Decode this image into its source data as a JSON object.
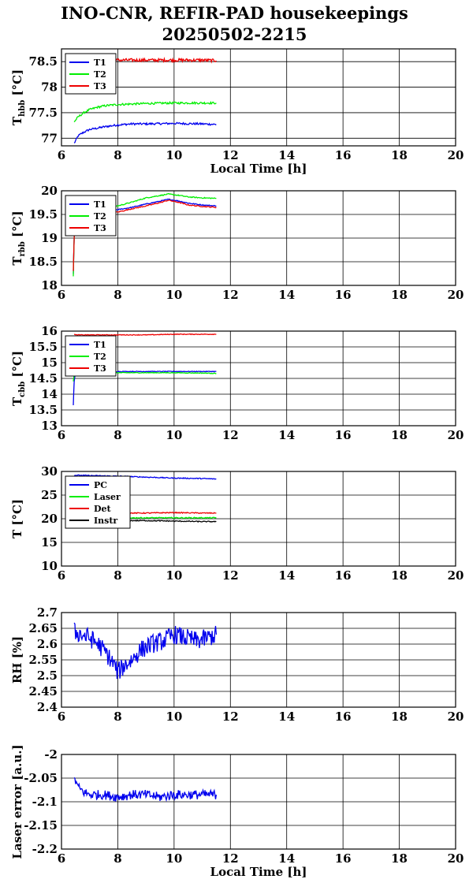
{
  "title": "INO-CNR, REFIR-PAD housekeepings",
  "subtitle": "20250502-2215",
  "colors": {
    "blue": "#0000ee",
    "green": "#00ee00",
    "red": "#ee0000",
    "black": "#000000"
  },
  "chart_data": [
    {
      "type": "line",
      "ylabel": "T",
      "ylabel_sub": "hbb",
      "ylabel_unit": "[°C]",
      "xlabel": "Local Time [h]",
      "xlim": [
        6,
        20
      ],
      "ylim": [
        76.85,
        78.75
      ],
      "xticks": [
        6,
        8,
        10,
        12,
        14,
        16,
        18,
        20
      ],
      "yticks": [
        77,
        77.5,
        78,
        78.5
      ],
      "ytick_labels": [
        "77",
        "77.5",
        "78",
        "78.5"
      ],
      "grid": true,
      "legend_position": "top-left",
      "series": [
        {
          "name": "T1",
          "color": "#0000ee",
          "x": [
            6.45,
            6.6,
            6.8,
            7.0,
            7.3,
            7.6,
            8.0,
            8.5,
            9.0,
            10.0,
            11.0,
            11.5
          ],
          "y": [
            76.9,
            77.05,
            77.12,
            77.17,
            77.2,
            77.23,
            77.26,
            77.28,
            77.28,
            77.29,
            77.28,
            77.27
          ]
        },
        {
          "name": "T2",
          "color": "#00ee00",
          "x": [
            6.45,
            6.6,
            6.8,
            7.0,
            7.3,
            7.6,
            8.0,
            8.5,
            9.0,
            10.0,
            11.0,
            11.5
          ],
          "y": [
            77.32,
            77.42,
            77.5,
            77.56,
            77.61,
            77.64,
            77.66,
            77.67,
            77.68,
            77.69,
            77.69,
            77.69
          ]
        },
        {
          "name": "T3",
          "color": "#ee0000",
          "x": [
            7.6,
            8.0,
            9.0,
            10.0,
            11.0,
            11.5
          ],
          "y": [
            78.52,
            78.53,
            78.53,
            78.53,
            78.53,
            78.52
          ]
        }
      ]
    },
    {
      "type": "line",
      "ylabel": "T",
      "ylabel_sub": "rbb",
      "ylabel_unit": "[°C]",
      "xlabel": "",
      "xlim": [
        6,
        20
      ],
      "ylim": [
        18,
        20
      ],
      "xticks": [
        6,
        8,
        10,
        12,
        14,
        16,
        18,
        20
      ],
      "yticks": [
        18,
        18.5,
        19,
        19.5,
        20
      ],
      "ytick_labels": [
        "18",
        "18.5",
        "19",
        "19.5",
        "20"
      ],
      "grid": true,
      "legend_position": "top-left",
      "series": [
        {
          "name": "T1",
          "color": "#0000ee",
          "x": [
            6.42,
            6.45,
            6.5,
            8.0,
            8.5,
            9.0,
            9.5,
            9.8,
            10.2,
            10.5,
            11.0,
            11.5
          ],
          "y": [
            18.25,
            19.0,
            19.55,
            19.6,
            19.65,
            19.72,
            19.78,
            19.82,
            19.78,
            19.74,
            19.7,
            19.68
          ]
        },
        {
          "name": "T2",
          "color": "#00ee00",
          "x": [
            6.42,
            6.45,
            6.5,
            8.0,
            8.5,
            9.0,
            9.5,
            9.8,
            10.2,
            10.5,
            11.0,
            11.5
          ],
          "y": [
            18.2,
            19.0,
            19.6,
            19.68,
            19.76,
            19.85,
            19.9,
            19.93,
            19.9,
            19.87,
            19.85,
            19.84
          ]
        },
        {
          "name": "T3",
          "color": "#ee0000",
          "x": [
            6.42,
            6.45,
            6.5,
            8.0,
            8.5,
            9.0,
            9.5,
            9.8,
            10.2,
            10.5,
            11.0,
            11.5
          ],
          "y": [
            18.3,
            19.0,
            19.5,
            19.55,
            19.62,
            19.68,
            19.75,
            19.8,
            19.75,
            19.7,
            19.67,
            19.65
          ]
        }
      ]
    },
    {
      "type": "line",
      "ylabel": "T",
      "ylabel_sub": "cbb",
      "ylabel_unit": "[°C]",
      "xlabel": "",
      "xlim": [
        6,
        20
      ],
      "ylim": [
        13,
        16
      ],
      "xticks": [
        6,
        8,
        10,
        12,
        14,
        16,
        18,
        20
      ],
      "yticks": [
        13,
        13.5,
        14,
        14.5,
        15,
        15.5,
        16
      ],
      "ytick_labels": [
        "13",
        "13.5",
        "14",
        "14.5",
        "15",
        "15.5",
        "16"
      ],
      "grid": true,
      "legend_position": "top-left",
      "series": [
        {
          "name": "T1",
          "color": "#0000ee",
          "x": [
            6.42,
            6.45,
            6.5,
            8.0,
            9.0,
            10.0,
            11.0,
            11.5
          ],
          "y": [
            13.65,
            14.4,
            14.72,
            14.72,
            14.72,
            14.72,
            14.72,
            14.72
          ]
        },
        {
          "name": "T2",
          "color": "#00ee00",
          "x": [
            6.42,
            6.45,
            6.5,
            8.0,
            9.0,
            10.0,
            11.0,
            11.5
          ],
          "y": [
            14.4,
            14.6,
            14.68,
            14.68,
            14.68,
            14.68,
            14.67,
            14.66
          ]
        },
        {
          "name": "T3",
          "color": "#ee0000",
          "x": [
            6.45,
            6.5,
            8.0,
            9.0,
            10.0,
            11.0,
            11.5
          ],
          "y": [
            15.9,
            15.88,
            15.88,
            15.88,
            15.9,
            15.9,
            15.9
          ]
        }
      ]
    },
    {
      "type": "line",
      "ylabel": "T [°C]",
      "ylabel_sub": "",
      "ylabel_unit": "",
      "xlabel": "",
      "xlim": [
        6,
        20
      ],
      "ylim": [
        10,
        30
      ],
      "xticks": [
        6,
        8,
        10,
        12,
        14,
        16,
        18,
        20
      ],
      "yticks": [
        10,
        15,
        20,
        25,
        30
      ],
      "ytick_labels": [
        "10",
        "15",
        "20",
        "25",
        "30"
      ],
      "grid": true,
      "legend_position": "top-left",
      "series": [
        {
          "name": "PC",
          "color": "#0000ee",
          "x": [
            6.45,
            8.0,
            9.0,
            10.0,
            11.0,
            11.5
          ],
          "y": [
            29.2,
            29.0,
            28.8,
            28.6,
            28.5,
            28.4
          ]
        },
        {
          "name": "Laser",
          "color": "#00ee00",
          "x": [
            6.45,
            8.0,
            9.0,
            10.0,
            11.0,
            11.5
          ],
          "y": [
            20.1,
            20.2,
            20.2,
            20.2,
            20.2,
            20.2
          ]
        },
        {
          "name": "Det",
          "color": "#ee0000",
          "x": [
            6.45,
            8.0,
            9.0,
            10.0,
            11.0,
            11.5
          ],
          "y": [
            21.2,
            21.2,
            21.2,
            21.3,
            21.2,
            21.2
          ]
        },
        {
          "name": "Instr",
          "color": "#000000",
          "x": [
            6.45,
            8.0,
            9.0,
            10.0,
            11.0,
            11.5
          ],
          "y": [
            19.5,
            19.6,
            19.6,
            19.5,
            19.4,
            19.4
          ]
        }
      ]
    },
    {
      "type": "line",
      "ylabel": "RH [%]",
      "ylabel_sub": "",
      "ylabel_unit": "",
      "xlabel": "",
      "xlim": [
        6,
        20
      ],
      "ylim": [
        2.4,
        2.7
      ],
      "xticks": [
        6,
        8,
        10,
        12,
        14,
        16,
        18,
        20
      ],
      "yticks": [
        2.4,
        2.45,
        2.5,
        2.55,
        2.6,
        2.65,
        2.7
      ],
      "ytick_labels": [
        "2.4",
        "2.45",
        "2.5",
        "2.55",
        "2.6",
        "2.65",
        "2.7"
      ],
      "grid": true,
      "legend_position": "",
      "series": [
        {
          "name": "",
          "color": "#0000ee",
          "x": [
            6.45,
            6.7,
            7.0,
            7.3,
            7.6,
            7.9,
            8.0,
            8.2,
            8.5,
            8.8,
            9.2,
            9.6,
            10.0,
            10.4,
            10.8,
            11.2,
            11.5
          ],
          "y": [
            2.64,
            2.63,
            2.62,
            2.6,
            2.57,
            2.53,
            2.51,
            2.53,
            2.55,
            2.58,
            2.6,
            2.61,
            2.63,
            2.62,
            2.61,
            2.62,
            2.63
          ]
        }
      ]
    },
    {
      "type": "line",
      "ylabel": "Laser error [a.u.]",
      "ylabel_sub": "",
      "ylabel_unit": "",
      "xlabel": "Local Time [h]",
      "xlim": [
        6,
        20
      ],
      "ylim": [
        -2.2,
        -2
      ],
      "xticks": [
        6,
        8,
        10,
        12,
        14,
        16,
        18,
        20
      ],
      "yticks": [
        -2.2,
        -2.15,
        -2.1,
        -2.05,
        -2
      ],
      "ytick_labels": [
        "-2.2",
        "-2.15",
        "-2.1",
        "-2.05",
        "-2"
      ],
      "grid": true,
      "legend_position": "",
      "series": [
        {
          "name": "",
          "color": "#0000ee",
          "x": [
            6.45,
            6.6,
            6.8,
            7.0,
            7.5,
            8.0,
            8.5,
            9.0,
            9.5,
            10.0,
            10.5,
            11.0,
            11.5
          ],
          "y": [
            -2.05,
            -2.07,
            -2.08,
            -2.085,
            -2.085,
            -2.09,
            -2.085,
            -2.085,
            -2.09,
            -2.085,
            -2.085,
            -2.085,
            -2.085
          ]
        }
      ]
    }
  ]
}
